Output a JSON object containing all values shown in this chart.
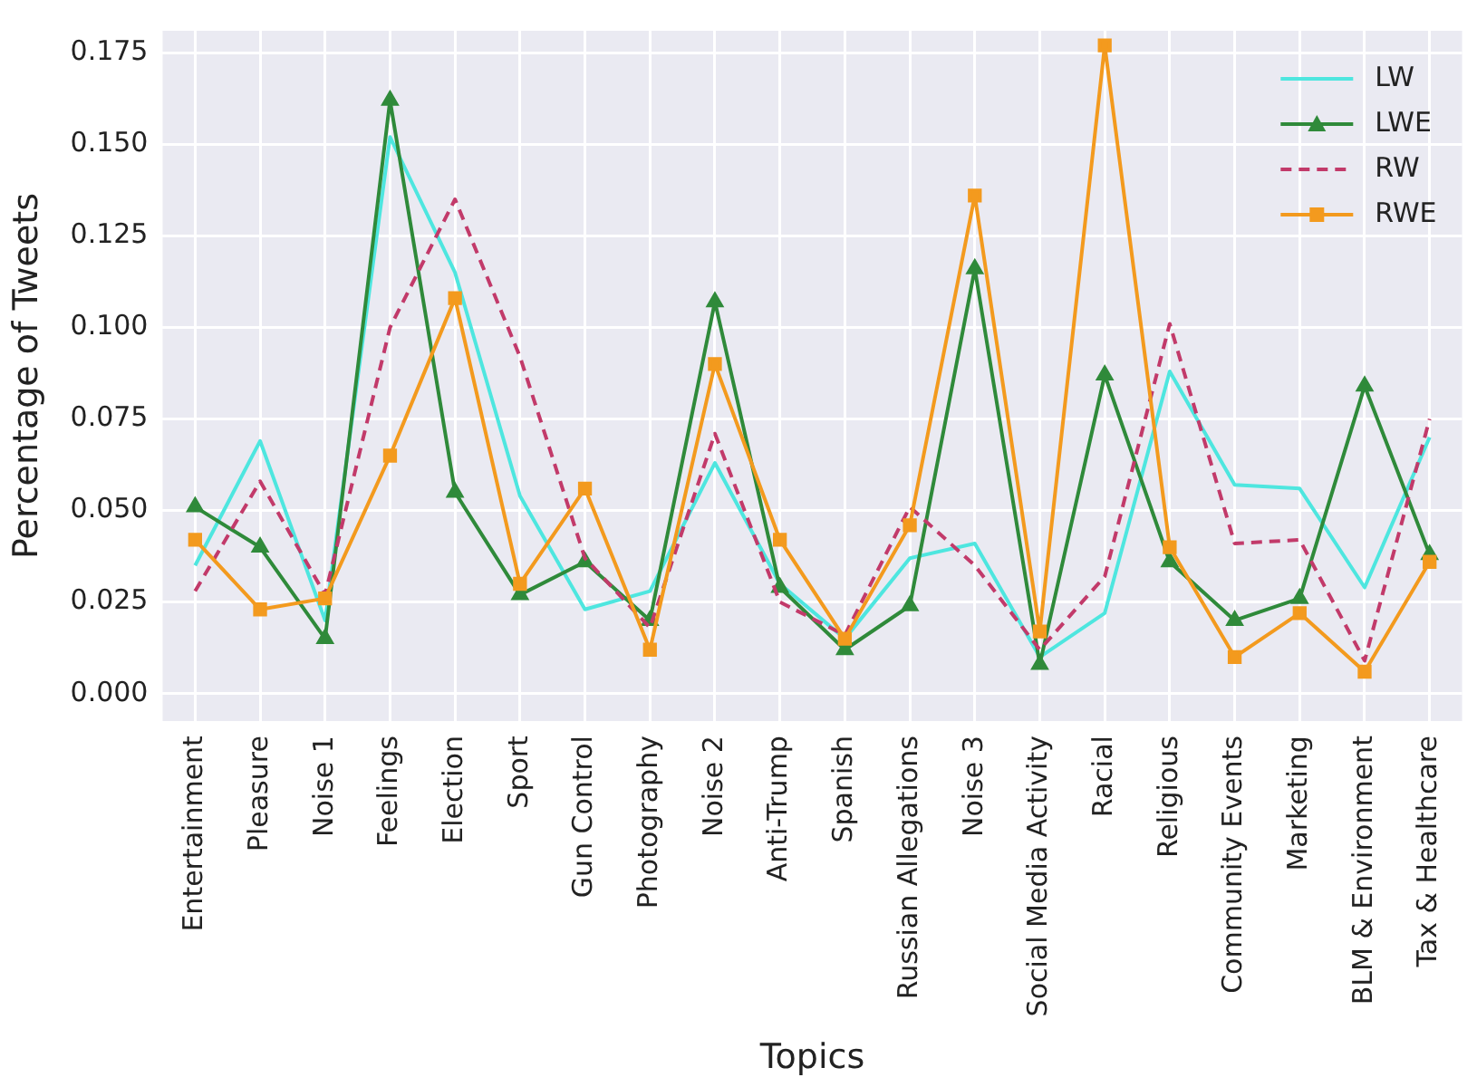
{
  "chart_data": {
    "type": "line",
    "xlabel": "Topics",
    "ylabel": "Percentage of Tweets",
    "categories": [
      "Entertainment",
      "Pleasure",
      "Noise 1",
      "Feelings",
      "Election",
      "Sport",
      "Gun Control",
      "Photography",
      "Noise 2",
      "Anti-Trump",
      "Spanish",
      "Russian Allegations",
      "Noise 3",
      "Social Media Activity",
      "Racial",
      "Religious",
      "Community Events",
      "Marketing",
      "BLM & Environment",
      "Tax & Healthcare"
    ],
    "series": [
      {
        "name": "LW",
        "color": "#4ee6df",
        "marker": "none",
        "line_style": "solid",
        "values": [
          0.035,
          0.069,
          0.02,
          0.152,
          0.115,
          0.054,
          0.023,
          0.028,
          0.063,
          0.03,
          0.015,
          0.037,
          0.041,
          0.01,
          0.022,
          0.088,
          0.057,
          0.056,
          0.029,
          0.07
        ]
      },
      {
        "name": "LWE",
        "color": "#2f8a3a",
        "marker": "triangle",
        "line_style": "solid",
        "values": [
          0.051,
          0.04,
          0.015,
          0.162,
          0.055,
          0.027,
          0.036,
          0.02,
          0.107,
          0.029,
          0.012,
          0.024,
          0.116,
          0.008,
          0.087,
          0.036,
          0.02,
          0.026,
          0.084,
          0.038
        ]
      },
      {
        "name": "RW",
        "color": "#c23a6a",
        "marker": "none",
        "line_style": "dashed",
        "values": [
          0.028,
          0.058,
          0.027,
          0.1,
          0.135,
          0.092,
          0.037,
          0.018,
          0.071,
          0.025,
          0.016,
          0.051,
          0.035,
          0.012,
          0.032,
          0.101,
          0.041,
          0.042,
          0.009,
          0.075
        ]
      },
      {
        "name": "RWE",
        "color": "#f39a1e",
        "marker": "square",
        "line_style": "solid",
        "values": [
          0.042,
          0.023,
          0.026,
          0.065,
          0.108,
          0.03,
          0.056,
          0.012,
          0.09,
          0.042,
          0.015,
          0.046,
          0.136,
          0.017,
          0.177,
          0.04,
          0.01,
          0.022,
          0.006,
          0.036
        ]
      }
    ],
    "ylim": [
      -0.0075,
      0.181
    ],
    "yticks": [
      {
        "value": 0,
        "label": "0.000"
      },
      {
        "value": 0.025,
        "label": "0.025"
      },
      {
        "value": 0.05,
        "label": "0.050"
      },
      {
        "value": 0.075,
        "label": "0.075"
      },
      {
        "value": 0.1,
        "label": "0.100"
      },
      {
        "value": 0.125,
        "label": "0.125"
      },
      {
        "value": 0.15,
        "label": "0.150"
      },
      {
        "value": 0.175,
        "label": "0.175"
      }
    ],
    "grid": true,
    "legend": "top right"
  }
}
